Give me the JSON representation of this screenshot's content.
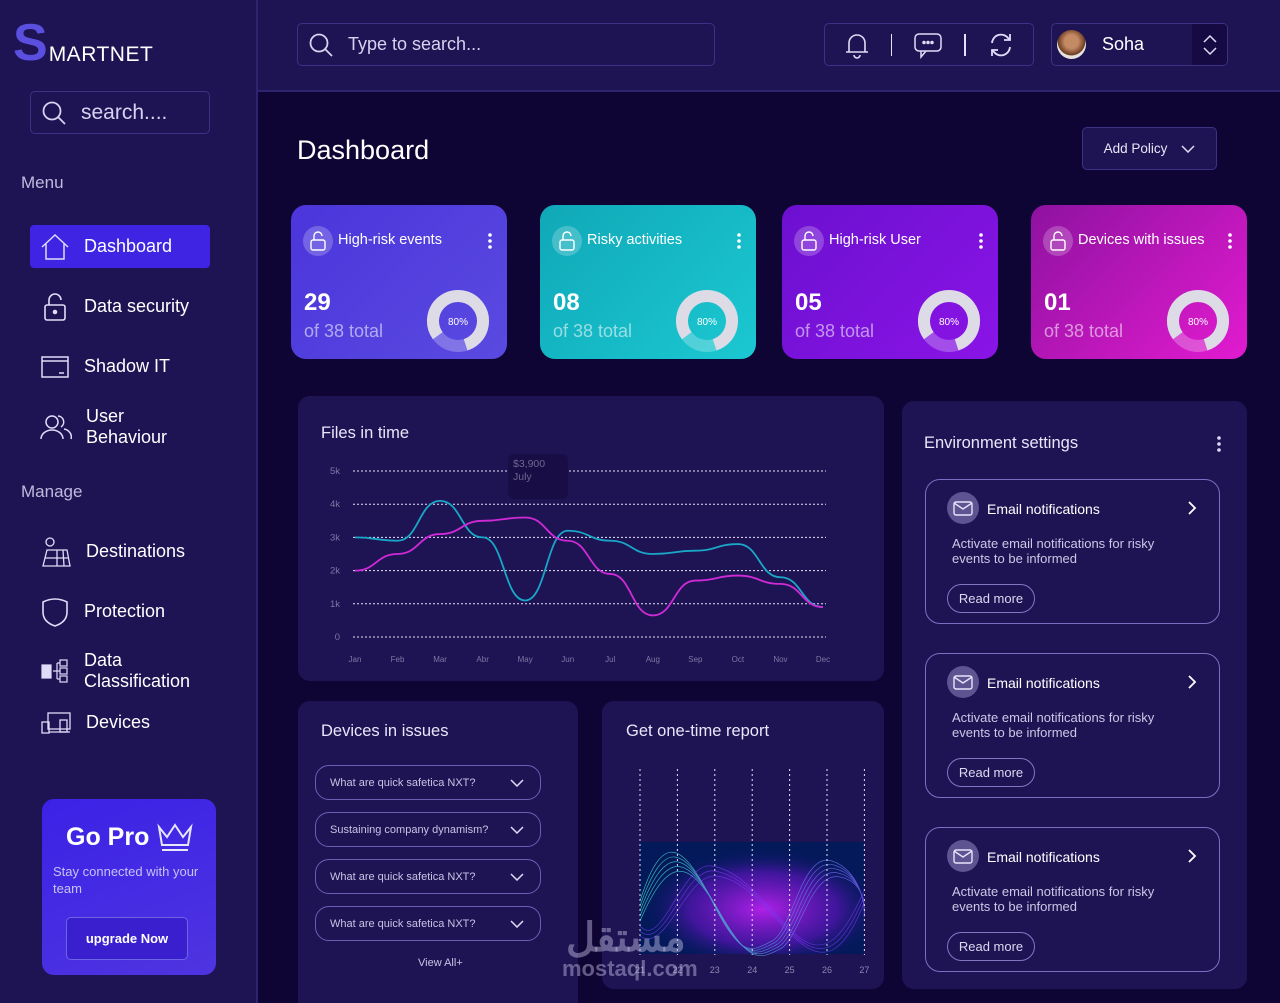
{
  "brand": {
    "initial": "S",
    "rest": "MARTNET",
    "accent": "#5b4fe0"
  },
  "sidebar": {
    "search_placeholder": "search....",
    "menu_label": "Menu",
    "manage_label": "Manage",
    "menu_items": [
      {
        "label": "Dashboard",
        "icon": "home-icon",
        "active": true
      },
      {
        "label": "Data security",
        "icon": "lock-icon"
      },
      {
        "label": "Shadow IT",
        "icon": "window-icon"
      },
      {
        "label": "User Behaviour",
        "icon": "users-icon"
      }
    ],
    "manage_items": [
      {
        "label": "Destinations",
        "icon": "map-icon"
      },
      {
        "label": "Protection",
        "icon": "shield-icon"
      },
      {
        "label": "Data Classification",
        "icon": "classification-icon"
      },
      {
        "label": "Devices",
        "icon": "devices-icon"
      }
    ],
    "promo": {
      "title": "Go Pro",
      "subtitle": "Stay connected with your team",
      "button": "upgrade Now"
    }
  },
  "topbar": {
    "search_placeholder": "Type to search...",
    "user_name": "Soha"
  },
  "page": {
    "title": "Dashboard",
    "add_policy": "Add Policy"
  },
  "stats": [
    {
      "label": "High-risk events",
      "value": "29",
      "sub": "of 38  total",
      "percent": "80%",
      "color_from": "#4b35dc",
      "color_to": "#5a4ae0"
    },
    {
      "label": "Risky activities",
      "value": "08",
      "sub": "of 38  total",
      "percent": "80%",
      "color_from": "#10a8b8",
      "color_to": "#1bc8d2"
    },
    {
      "label": "High-risk User",
      "value": "05",
      "sub": "of 38  total",
      "percent": "80%",
      "color_from": "#6c10d0",
      "color_to": "#8a14e6"
    },
    {
      "label": "Devices with issues",
      "value": "01",
      "sub": "of 38  total",
      "percent": "80%",
      "color_from": "#8e12a0",
      "color_to": "#e21bd0"
    }
  ],
  "files_chart": {
    "title": "Files in time",
    "tooltip_value": "$3,900",
    "tooltip_label": "July"
  },
  "chart_data": [
    {
      "type": "line",
      "title": "Files in time",
      "categories": [
        "Jan",
        "Feb",
        "Mar",
        "Abr",
        "May",
        "Jun",
        "Jul",
        "Aug",
        "Sep",
        "Oct",
        "Nov",
        "Dec"
      ],
      "yticks": [
        "0",
        "1k",
        "2k",
        "3k",
        "4k",
        "5k"
      ],
      "ylim": [
        0,
        5000
      ],
      "grid": "horizontal dotted",
      "series": [
        {
          "name": "cyan",
          "color": "#1aa6c6",
          "values": [
            3000,
            2900,
            4100,
            3000,
            1100,
            3200,
            2900,
            2500,
            2600,
            2800,
            1800,
            900
          ]
        },
        {
          "name": "magenta",
          "color": "#d02ad6",
          "values": [
            2000,
            2500,
            3100,
            3500,
            3600,
            2900,
            1900,
            650,
            1700,
            1850,
            1600,
            900
          ]
        }
      ],
      "annotation": {
        "text": "$3,900 July",
        "x": "May"
      }
    },
    {
      "type": "area",
      "title": "Get one-time report",
      "categories": [
        "21",
        "22",
        "23",
        "24",
        "25",
        "26",
        "27"
      ],
      "grid": "vertical dotted"
    }
  ],
  "devices_issues": {
    "title": "Devices in issues",
    "items": [
      "What are  quick safetica NXT?",
      "Sustaining company dynamism?",
      "What are  quick safetica NXT?",
      "What are  quick safetica NXT?"
    ],
    "view_all": "View All+"
  },
  "report": {
    "title": "Get one-time report",
    "x_labels": [
      "21",
      "22",
      "23",
      "24",
      "25",
      "26",
      "27"
    ]
  },
  "env": {
    "title": "Environment settings",
    "cards": [
      {
        "title": "Email notifications",
        "desc": "Activate email notifications  for risky events to be informed",
        "button": "Read more"
      },
      {
        "title": "Email notifications",
        "desc": "Activate email notifications  for risky events to be informed",
        "button": "Read more"
      },
      {
        "title": "Email notifications",
        "desc": "Activate email notifications  for risky events to be informed",
        "button": "Read more"
      }
    ]
  },
  "watermark": {
    "arabic": "مستقل",
    "latin": "mostaql.com"
  }
}
